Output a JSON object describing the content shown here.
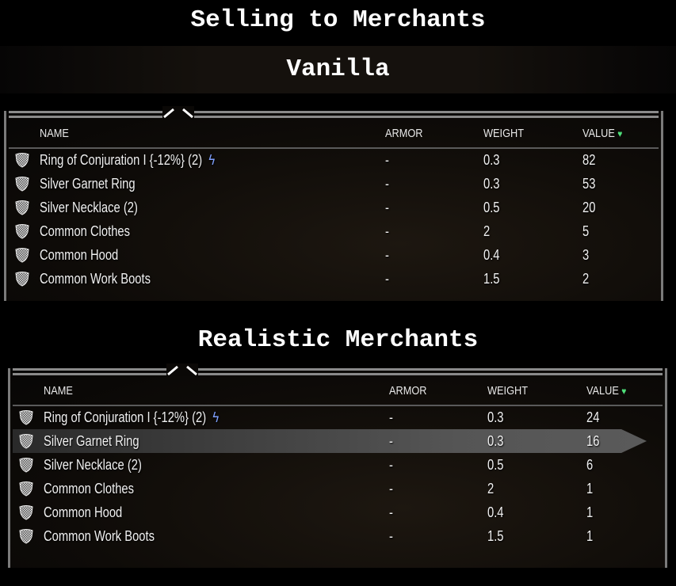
{
  "page_title": "Selling to Merchants",
  "panels": [
    {
      "title": "Vanilla",
      "headers": {
        "name": "NAME",
        "armor": "ARMOR",
        "weight": "WEIGHT",
        "value": "VALUE"
      },
      "sort_icon": "green-gem-icon",
      "items": [
        {
          "name": "Ring of Conjuration I  {-12%} (2)",
          "enchanted": true,
          "armor": "-",
          "weight": "0.3",
          "value": "82"
        },
        {
          "name": "Silver Garnet Ring",
          "armor": "-",
          "weight": "0.3",
          "value": "53"
        },
        {
          "name": "Silver Necklace (2)",
          "armor": "-",
          "weight": "0.5",
          "value": "20"
        },
        {
          "name": "Common Clothes",
          "armor": "-",
          "weight": "2",
          "value": "5"
        },
        {
          "name": "Common Hood",
          "armor": "-",
          "weight": "0.4",
          "value": "3"
        },
        {
          "name": "Common Work Boots",
          "armor": "-",
          "weight": "1.5",
          "value": "2"
        }
      ]
    },
    {
      "title": "Realistic Merchants",
      "headers": {
        "name": "NAME",
        "armor": "ARMOR",
        "weight": "WEIGHT",
        "value": "VALUE"
      },
      "sort_icon": "green-gem-icon",
      "selected_index": 1,
      "items": [
        {
          "name": "Ring of Conjuration I  {-12%} (2)",
          "enchanted": true,
          "armor": "-",
          "weight": "0.3",
          "value": "24"
        },
        {
          "name": "Silver Garnet Ring",
          "armor": "-",
          "weight": "0.3",
          "value": "16"
        },
        {
          "name": "Silver Necklace (2)",
          "armor": "-",
          "weight": "0.5",
          "value": "6"
        },
        {
          "name": "Common Clothes",
          "armor": "-",
          "weight": "2",
          "value": "1"
        },
        {
          "name": "Common Hood",
          "armor": "-",
          "weight": "0.4",
          "value": "1"
        },
        {
          "name": "Common Work Boots",
          "armor": "-",
          "weight": "1.5",
          "value": "1"
        }
      ]
    }
  ],
  "colors": {
    "bolt": "#7fa0ff",
    "gem": "#4fe07a",
    "selection": "#555555"
  }
}
